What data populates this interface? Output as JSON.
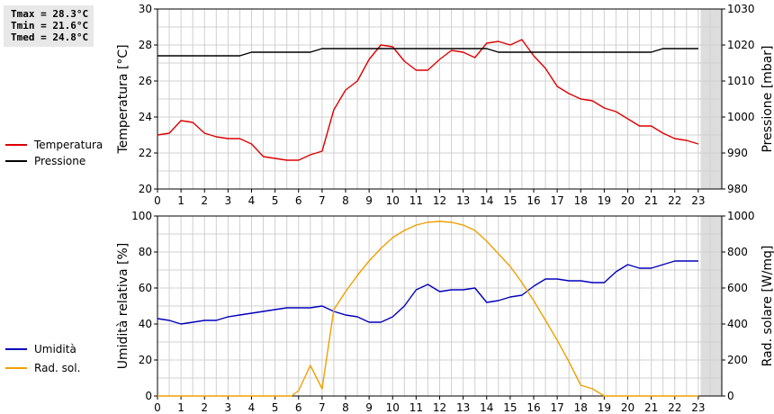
{
  "stats": {
    "tmax": "Tmax = 28.3°C",
    "tmin": "Tmin = 21.6°C",
    "tmed": "Tmed = 24.8°C"
  },
  "colors": {
    "temperature": "#dd0000",
    "pressure": "#000000",
    "humidity": "#0000bb",
    "radiation": "#f0a000",
    "grid": "#d0d0d0",
    "shade": "#dddddd"
  },
  "chart_data": [
    {
      "type": "line",
      "legend": [
        "Temperatura",
        "Pressione"
      ],
      "legend_placement": "left",
      "ylabel_left": "Temperatura [°C]",
      "ylabel_right": "Pressione [mbar]",
      "xlim": [
        0,
        24
      ],
      "ylim_left": [
        20,
        30
      ],
      "ylim_right": [
        980,
        1030
      ],
      "x_ticks": [
        "0",
        "1",
        "2",
        "3",
        "4",
        "5",
        "6",
        "7",
        "8",
        "9",
        "10",
        "11",
        "12",
        "13",
        "14",
        "15",
        "16",
        "17",
        "18",
        "19",
        "20",
        "21",
        "22",
        "23"
      ],
      "y_ticks_left": [
        "20",
        "22",
        "24",
        "26",
        "28",
        "30"
      ],
      "y_ticks_right": [
        "980",
        "990",
        "1000",
        "1010",
        "1020",
        "1030"
      ],
      "grid": true,
      "shaded_x_range": [
        23.1,
        24
      ],
      "series": [
        {
          "name": "Temperatura",
          "axis": "left",
          "x": [
            0,
            0.5,
            1,
            1.5,
            2,
            2.5,
            3,
            3.5,
            4,
            4.5,
            5,
            5.5,
            6,
            6.5,
            7,
            7.5,
            8,
            8.5,
            9,
            9.5,
            10,
            10.5,
            11,
            11.5,
            12,
            12.5,
            13,
            13.5,
            14,
            14.5,
            15,
            15.5,
            16,
            16.5,
            17,
            17.5,
            18,
            18.5,
            19,
            19.5,
            20,
            20.5,
            21,
            21.5,
            22,
            22.5,
            23
          ],
          "values": [
            23.0,
            23.1,
            23.8,
            23.7,
            23.1,
            22.9,
            22.8,
            22.8,
            22.5,
            21.8,
            21.7,
            21.6,
            21.6,
            21.9,
            22.1,
            24.4,
            25.5,
            26.0,
            27.2,
            28.0,
            27.9,
            27.1,
            26.6,
            26.6,
            27.2,
            27.7,
            27.6,
            27.3,
            28.1,
            28.2,
            28.0,
            28.3,
            27.4,
            26.7,
            25.7,
            25.3,
            25.0,
            24.9,
            24.5,
            24.3,
            23.9,
            23.5,
            23.5,
            23.1,
            22.8,
            22.7,
            22.5
          ]
        },
        {
          "name": "Pressione",
          "axis": "right",
          "x": [
            0,
            3.5,
            4.0,
            6.5,
            7.0,
            14.0,
            14.5,
            21.0,
            21.5,
            23.0
          ],
          "values": [
            1017,
            1017,
            1018,
            1018,
            1019,
            1019,
            1018,
            1018,
            1019,
            1019
          ]
        }
      ]
    },
    {
      "type": "line",
      "legend": [
        "Umidità",
        "Rad. sol."
      ],
      "legend_placement": "left",
      "ylabel_left": "Umidità relativa [%]",
      "ylabel_right": "Rad. solare [W/mq]",
      "xlim": [
        0,
        24
      ],
      "ylim_left": [
        0,
        100
      ],
      "ylim_right": [
        0,
        1000
      ],
      "x_ticks": [
        "0",
        "1",
        "2",
        "3",
        "4",
        "5",
        "6",
        "7",
        "8",
        "9",
        "10",
        "11",
        "12",
        "13",
        "14",
        "15",
        "16",
        "17",
        "18",
        "19",
        "20",
        "21",
        "22",
        "23"
      ],
      "y_ticks_left": [
        "0",
        "20",
        "40",
        "60",
        "80",
        "100"
      ],
      "y_ticks_right": [
        "0",
        "200",
        "400",
        "600",
        "800",
        "1000"
      ],
      "grid": true,
      "shaded_x_range": [
        23.1,
        24
      ],
      "series": [
        {
          "name": "Umidità",
          "axis": "left",
          "x": [
            0,
            0.5,
            1,
            1.5,
            2,
            2.5,
            3,
            3.5,
            4,
            4.5,
            5,
            5.5,
            6,
            6.5,
            7,
            7.5,
            8,
            8.5,
            9,
            9.5,
            10,
            10.5,
            11,
            11.5,
            12,
            12.5,
            13,
            13.5,
            14,
            14.5,
            15,
            15.5,
            16,
            16.5,
            17,
            17.5,
            18,
            18.5,
            19,
            19.5,
            20,
            20.5,
            21,
            21.5,
            22,
            22.5,
            23
          ],
          "values": [
            43,
            42,
            40,
            41,
            42,
            42,
            44,
            45,
            46,
            47,
            48,
            49,
            49,
            49,
            50,
            47,
            45,
            44,
            41,
            41,
            44,
            50,
            59,
            62,
            58,
            59,
            59,
            60,
            52,
            53,
            55,
            56,
            61,
            65,
            65,
            64,
            64,
            63,
            63,
            69,
            73,
            71,
            71,
            73,
            75,
            75,
            75
          ]
        },
        {
          "name": "Rad. sol.",
          "axis": "right",
          "x": [
            0,
            5.7,
            6.0,
            6.5,
            7.0,
            7.5,
            8,
            8.5,
            9,
            9.5,
            10,
            10.5,
            11,
            11.5,
            12,
            12.5,
            13,
            13.5,
            14,
            14.5,
            15,
            15.5,
            16,
            16.5,
            17,
            17.5,
            18,
            18.5,
            19,
            23
          ],
          "values": [
            0,
            0,
            30,
            170,
            40,
            480,
            580,
            670,
            750,
            820,
            880,
            920,
            950,
            965,
            970,
            965,
            950,
            920,
            860,
            790,
            720,
            630,
            530,
            420,
            310,
            190,
            60,
            40,
            0,
            0
          ]
        }
      ]
    }
  ]
}
